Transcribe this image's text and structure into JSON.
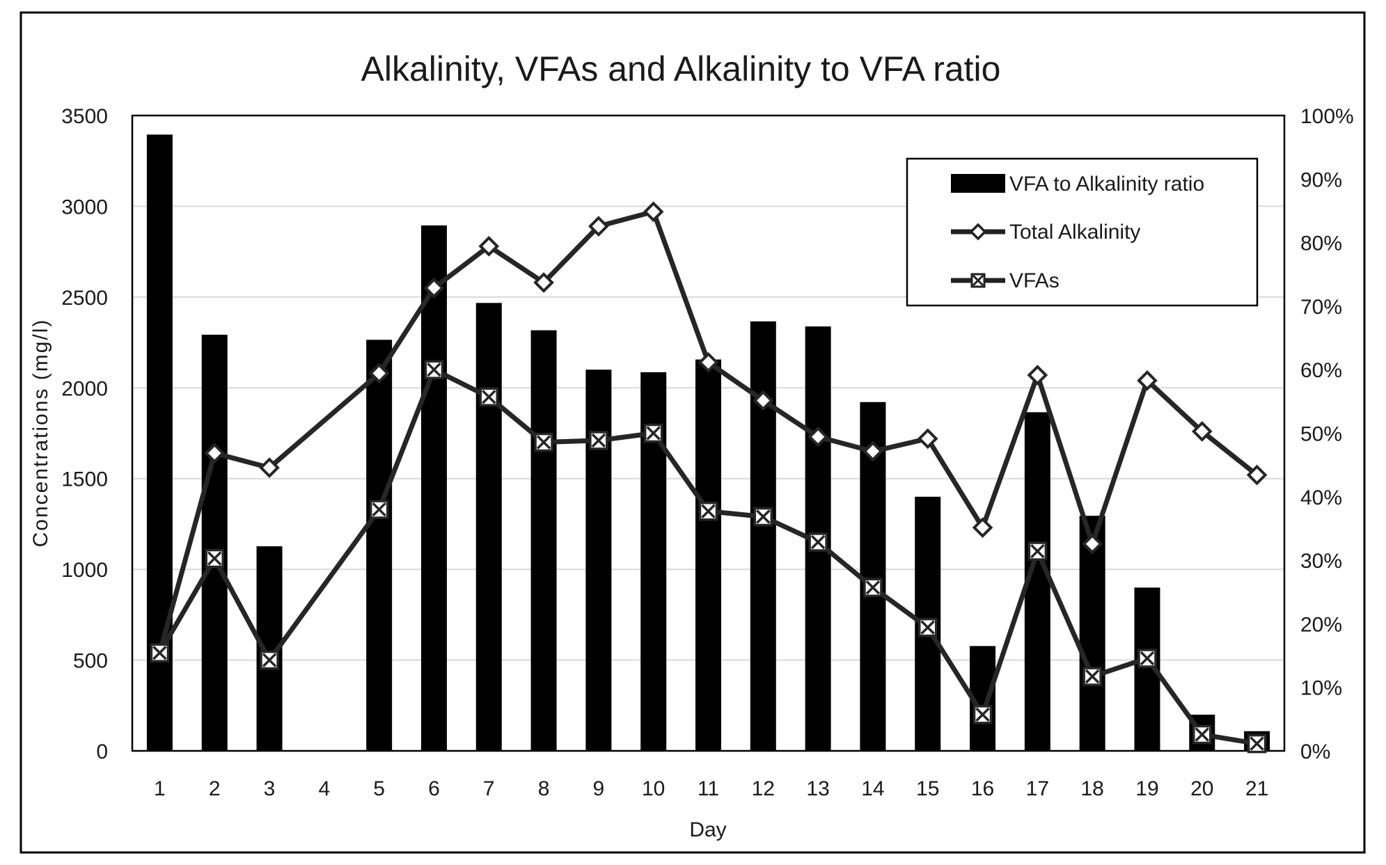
{
  "chart_data": {
    "type": "bar+line",
    "title": "Alkalinity, VFAs and Alkalinity to VFA ratio",
    "xlabel": "Day",
    "ylabel": "Concentrations (mg/l)",
    "y2label": "",
    "categories": [
      "1",
      "2",
      "3",
      "4",
      "5",
      "6",
      "7",
      "8",
      "9",
      "10",
      "11",
      "12",
      "13",
      "14",
      "15",
      "16",
      "17",
      "18",
      "19",
      "20",
      "21"
    ],
    "ylim": [
      0,
      3500
    ],
    "yticks": [
      0,
      500,
      1000,
      1500,
      2000,
      2500,
      3000,
      3500
    ],
    "y2lim": [
      0,
      100
    ],
    "y2ticks": [
      "0%",
      "10%",
      "20%",
      "30%",
      "40%",
      "50%",
      "60%",
      "70%",
      "80%",
      "90%",
      "100%"
    ],
    "grid": true,
    "legend_position": "top-right",
    "series": [
      {
        "name": "VFA to Alkalinity ratio",
        "type": "bar",
        "axis": "right",
        "unit": "%",
        "values": [
          97,
          65.5,
          32.2,
          null,
          64.7,
          82.7,
          70.5,
          66.2,
          60,
          59.6,
          61.6,
          67.6,
          66.8,
          54.9,
          40,
          16.5,
          53.3,
          37,
          25.7,
          5.7,
          3.1
        ]
      },
      {
        "name": "Total Alkalinity",
        "type": "line",
        "marker": "diamond",
        "axis": "left",
        "values": [
          540,
          1640,
          1560,
          null,
          2080,
          2550,
          2780,
          2580,
          2890,
          2970,
          2140,
          1930,
          1730,
          1650,
          1720,
          1230,
          2070,
          1140,
          2040,
          1760,
          1520
        ]
      },
      {
        "name": "VFAs",
        "type": "line",
        "marker": "x-square",
        "axis": "left",
        "values": [
          540,
          1060,
          500,
          null,
          1330,
          2100,
          1950,
          1700,
          1710,
          1750,
          1320,
          1290,
          1150,
          900,
          680,
          200,
          1100,
          410,
          510,
          90,
          40
        ]
      }
    ]
  }
}
